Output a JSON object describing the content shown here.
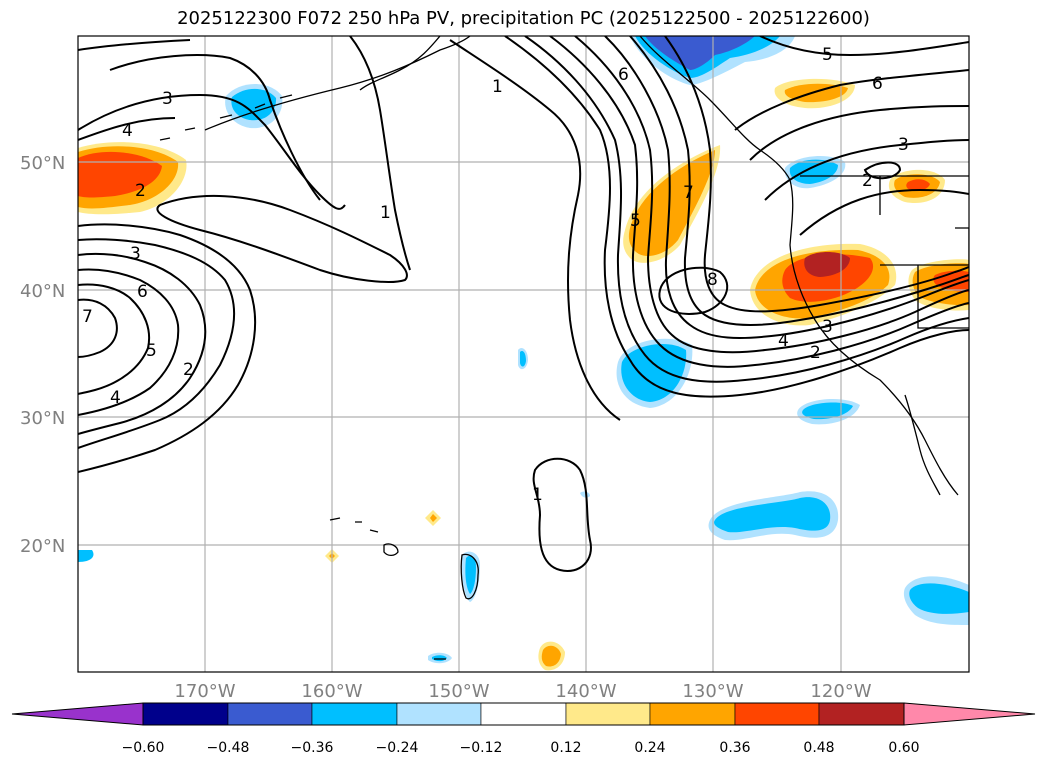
{
  "title": "2025122300 F072 250 hPa PV, precipitation PC (2025122500 - 2025122600)",
  "lat_labels": [
    "50°N",
    "40°N",
    "30°N",
    "20°N"
  ],
  "lon_labels": [
    "170°W",
    "160°W",
    "150°W",
    "140°W",
    "130°W",
    "120°W"
  ],
  "colorbar": {
    "ticks": [
      "−0.60",
      "−0.48",
      "−0.36",
      "−0.24",
      "−0.12",
      "0.12",
      "0.24",
      "0.36",
      "0.48",
      "0.60"
    ],
    "colors": [
      "#9932cc",
      "#00008b",
      "#3a5bd0",
      "#00bfff",
      "#b0e2ff",
      "#ffffff",
      "#ffe98a",
      "#ffa500",
      "#ff4500",
      "#b22222",
      "#ff88aa"
    ]
  },
  "contour_labels": [
    "3",
    "4",
    "2",
    "3",
    "6",
    "7",
    "5",
    "2",
    "4",
    "1",
    "1",
    "6",
    "7",
    "5",
    "8",
    "6",
    "5",
    "3",
    "2",
    "4",
    "2",
    "3",
    "1"
  ],
  "colors": {
    "light_blue": "#b0e2ff",
    "blue": "#00bfff",
    "dark_blue": "#3a5bd0",
    "yellow": "#ffe98a",
    "orange": "#ffa500",
    "red": "#ff4500",
    "dark_red": "#b22222"
  }
}
